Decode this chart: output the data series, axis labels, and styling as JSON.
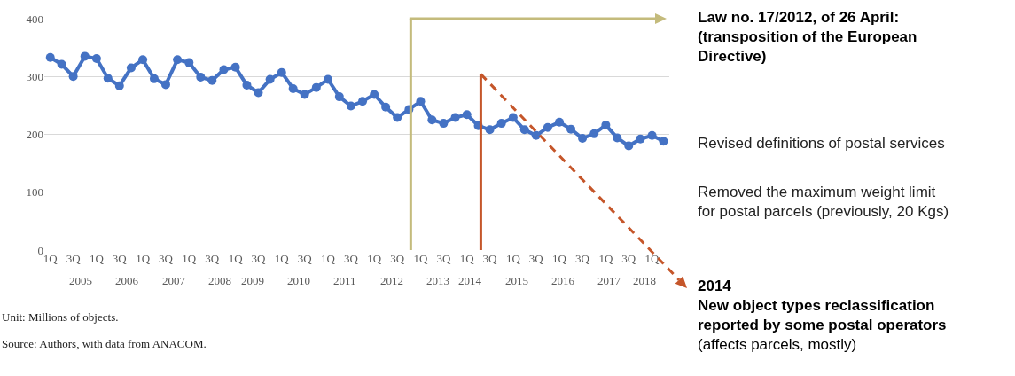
{
  "chart_data": {
    "type": "line",
    "x": [
      "2005-01",
      "2005-04",
      "2005-07",
      "2005-10",
      "2006-01",
      "2006-04",
      "2006-07",
      "2006-10",
      "2007-01",
      "2007-04",
      "2007-07",
      "2007-10",
      "2008-01",
      "2008-04",
      "2008-07",
      "2008-10",
      "2009-01",
      "2009-04",
      "2009-07",
      "2009-10",
      "2010-01",
      "2010-04",
      "2010-07",
      "2010-10",
      "2011-01",
      "2011-04",
      "2011-07",
      "2011-10",
      "2012-01",
      "2012-04",
      "2012-07",
      "2012-10",
      "2013-01",
      "2013-04",
      "2013-07",
      "2013-10",
      "2014-01",
      "2014-04",
      "2014-07",
      "2014-10",
      "2015-01",
      "2015-04",
      "2015-07",
      "2015-10",
      "2016-01",
      "2016-04",
      "2016-07",
      "2016-10",
      "2017-01",
      "2017-04",
      "2017-07",
      "2017-10",
      "2018-01",
      "2018-04"
    ],
    "series": [
      {
        "color": "#4472c4",
        "values": [
          333,
          321,
          300,
          335,
          331,
          297,
          284,
          315,
          329,
          296,
          286,
          329,
          324,
          299,
          293,
          312,
          316,
          285,
          272,
          295,
          307,
          279,
          269,
          281,
          295,
          265,
          249,
          257,
          269,
          247,
          229,
          243,
          257,
          225,
          219,
          229,
          234,
          215,
          208,
          219,
          229,
          208,
          198,
          212,
          221,
          209,
          193,
          201,
          216,
          194,
          180,
          192,
          198,
          188
        ]
      }
    ],
    "xlim": [
      "2004-11-15",
      "2018-05-17"
    ],
    "xticks": [
      {
        "value": "2005-01",
        "label": "1Q"
      },
      {
        "value": "2005-07",
        "label": "3Q"
      },
      {
        "value": "2006-01",
        "label": "1Q"
      },
      {
        "value": "2006-07",
        "label": "3Q"
      },
      {
        "value": "2007-01",
        "label": "1Q"
      },
      {
        "value": "2007-07",
        "label": "3Q"
      },
      {
        "value": "2008-01",
        "label": "1Q"
      },
      {
        "value": "2008-07",
        "label": "3Q"
      },
      {
        "value": "2009-01",
        "label": "1Q"
      },
      {
        "value": "2009-07",
        "label": "3Q"
      },
      {
        "value": "2010-01",
        "label": "1Q"
      },
      {
        "value": "2010-07",
        "label": "3Q"
      },
      {
        "value": "2011-01",
        "label": "1Q"
      },
      {
        "value": "2011-07",
        "label": "3Q"
      },
      {
        "value": "2012-01",
        "label": "1Q"
      },
      {
        "value": "2012-07",
        "label": "3Q"
      },
      {
        "value": "2013-01",
        "label": "1Q"
      },
      {
        "value": "2013-07",
        "label": "3Q"
      },
      {
        "value": "2014-01",
        "label": "1Q"
      },
      {
        "value": "2014-07",
        "label": "3Q"
      },
      {
        "value": "2015-01",
        "label": "1Q"
      },
      {
        "value": "2015-07",
        "label": "3Q"
      },
      {
        "value": "2016-01",
        "label": "1Q"
      },
      {
        "value": "2016-07",
        "label": "3Q"
      },
      {
        "value": "2017-01",
        "label": "1Q"
      },
      {
        "value": "2017-07",
        "label": "3Q"
      },
      {
        "value": "2018-01",
        "label": "1Q"
      }
    ],
    "ylim": [
      0,
      400
    ],
    "yticks": [
      0,
      100,
      200,
      300,
      400
    ],
    "grid": "y",
    "marker": "circle",
    "line_style": "solid",
    "ref_lines": [
      {
        "axis": "x",
        "value": "2012-10-15",
        "color": "#c4bb7c"
      },
      {
        "axis": "x",
        "value": "2014-04-21",
        "label": "2014\nNew object types reclassification\nreported by some postal operators\n(affects parcels, mostly)",
        "color": "#c5562a"
      }
    ],
    "annotations": [
      "Law no. 17/2012, of 26 April:\n(transposition of the European\nDirective)",
      "Revised definitions of postal services",
      "Removed the maximum weight limit\nfor postal parcels (previously, 20 Kgs)",
      "Unit: Millions of objects.",
      "Source: Authors, with data from ANACOM.",
      {
        "text": "2005"
      },
      {
        "text": "2006"
      },
      {
        "text": "2007"
      },
      {
        "text": "2008"
      },
      {
        "text": "2009"
      },
      {
        "text": "2010"
      },
      {
        "text": "2011"
      },
      {
        "text": "2012"
      },
      {
        "text": "2013"
      },
      {
        "text": "2014"
      },
      {
        "text": "2015"
      },
      {
        "text": "2016"
      },
      {
        "text": "2017"
      },
      {
        "text": "2018"
      }
    ]
  }
}
